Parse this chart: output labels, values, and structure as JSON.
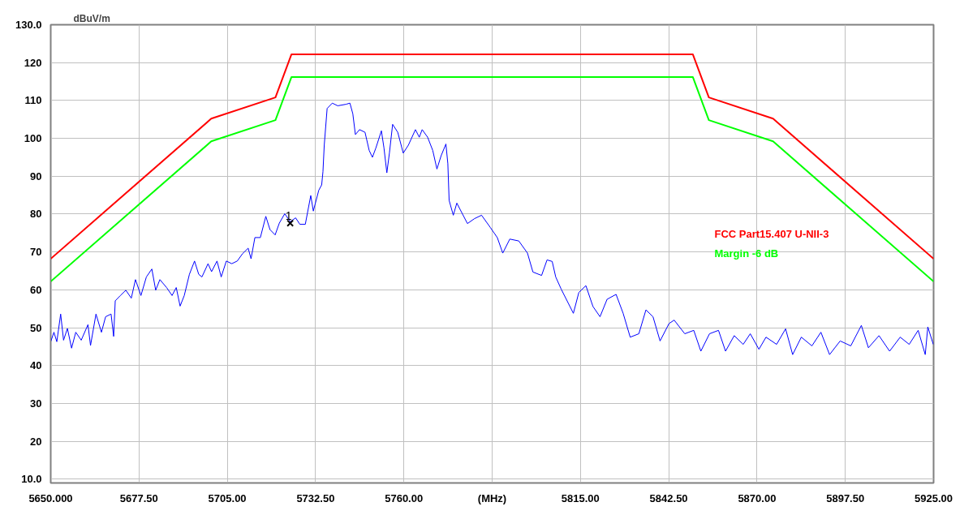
{
  "chart_data": {
    "type": "line",
    "ylabel": "dBuV/m",
    "xlim": [
      5650,
      5925
    ],
    "ylim": [
      9,
      130
    ],
    "xticks": [
      {
        "value": 5650,
        "label": "5650.000"
      },
      {
        "value": 5677.5,
        "label": "5677.50"
      },
      {
        "value": 5705,
        "label": "5705.00"
      },
      {
        "value": 5732.5,
        "label": "5732.50"
      },
      {
        "value": 5760,
        "label": "5760.00"
      },
      {
        "value": 5787.5,
        "label": "(MHz)"
      },
      {
        "value": 5815,
        "label": "5815.00"
      },
      {
        "value": 5842.5,
        "label": "5842.50"
      },
      {
        "value": 5870,
        "label": "5870.00"
      },
      {
        "value": 5897.5,
        "label": "5897.50"
      },
      {
        "value": 5925,
        "label": "5925.00"
      }
    ],
    "yticks": [
      {
        "value": 10,
        "label": "10.0"
      },
      20,
      30,
      40,
      50,
      60,
      70,
      80,
      90,
      100,
      110,
      120,
      {
        "value": 130,
        "label": "130.0"
      }
    ],
    "grid": true,
    "legend": "right",
    "series": [
      {
        "color": "#ff0000",
        "name": "FCC Part15.407 U-NII-3",
        "x": [
          5650,
          5700,
          5720,
          5725,
          5850,
          5855,
          5875,
          5925
        ],
        "values": [
          68.2,
          105.2,
          110.8,
          122.2,
          122.2,
          110.8,
          105.2,
          68.2
        ]
      },
      {
        "color": "#00ff00",
        "name": "Margin -6 dB",
        "x": [
          5650,
          5700,
          5720,
          5725,
          5850,
          5855,
          5875,
          5925
        ],
        "values": [
          62.2,
          99.2,
          104.8,
          116.2,
          116.2,
          104.8,
          99.2,
          62.2
        ]
      },
      {
        "color": "#0000ff",
        "x": [
          5650,
          5651,
          5651.9,
          5653.1,
          5654,
          5655.2,
          5656.5,
          5657.8,
          5659.5,
          5661.6,
          5662.4,
          5664.1,
          5665.8,
          5667.1,
          5668.8,
          5669.6,
          5670.1,
          5671.7,
          5673.4,
          5675.1,
          5676.4,
          5678.1,
          5679.8,
          5681.5,
          5682.7,
          5684,
          5686.1,
          5687.8,
          5689.1,
          5690.3,
          5691.6,
          5693.2,
          5694.8,
          5696.1,
          5697.1,
          5699,
          5700.1,
          5701.8,
          5703.1,
          5704.7,
          5706.4,
          5708.1,
          5709.8,
          5711.5,
          5712.4,
          5713.6,
          5715.3,
          5717,
          5718.3,
          5719.9,
          5721.2,
          5722.9,
          5724.6,
          5726.3,
          5727.6,
          5729.3,
          5731,
          5731.8,
          5733.5,
          5734.4,
          5734.8,
          5735.2,
          5736.1,
          5737.7,
          5739.4,
          5742,
          5743.2,
          5744.1,
          5744.9,
          5746.2,
          5747.9,
          5749.2,
          5750.2,
          5751.3,
          5753,
          5753.8,
          5754.7,
          5755.5,
          5756.5,
          5758.1,
          5759.8,
          5761.4,
          5763.6,
          5764.8,
          5765.7,
          5767.4,
          5769,
          5770.3,
          5771.6,
          5773.1,
          5773.7,
          5774.1,
          5775.4,
          5776.5,
          5779.8,
          5782,
          5784.2,
          5786.9,
          5789.1,
          5790.8,
          5793,
          5795.8,
          5798.5,
          5800.2,
          5802.9,
          5804.6,
          5806.2,
          5807.3,
          5809,
          5812.8,
          5814.5,
          5816.7,
          5818.9,
          5821.1,
          5823.3,
          5826.1,
          5828.3,
          5830.5,
          5833.2,
          5835.4,
          5837.6,
          5839.8,
          5842.6,
          5844.2,
          5847.5,
          5850.3,
          5852.5,
          5855.2,
          5858,
          5860.2,
          5862.9,
          5865.7,
          5867.9,
          5870.6,
          5872.8,
          5876.1,
          5878.9,
          5881.1,
          5883.8,
          5887.1,
          5889.9,
          5892.6,
          5895.9,
          5899.2,
          5902.5,
          5904.7,
          5908,
          5911.3,
          5914.6,
          5917.4,
          5920.2,
          5922.4,
          5923.2,
          5924.9
        ],
        "values": [
          46.3,
          48.8,
          46.3,
          53.6,
          46.7,
          49.8,
          44.6,
          48.8,
          46.7,
          50.8,
          45.3,
          53.6,
          48.8,
          52.9,
          53.6,
          47.7,
          57.1,
          58.5,
          59.9,
          57.8,
          62.7,
          58.5,
          63.4,
          65.5,
          59.9,
          62.7,
          60.6,
          58.5,
          60.6,
          55.7,
          58.5,
          64.1,
          67.6,
          64.1,
          63.4,
          66.9,
          64.8,
          67.6,
          63.4,
          67.6,
          66.9,
          67.6,
          69.6,
          71,
          68.2,
          73.8,
          73.8,
          79.4,
          75.9,
          74.5,
          77.6,
          80.1,
          78,
          79,
          77.3,
          77.3,
          84.9,
          80.8,
          86.3,
          87.7,
          91.2,
          98.2,
          107.9,
          109.3,
          108.6,
          109,
          109.3,
          106.5,
          101,
          102.3,
          101.6,
          96.8,
          95,
          97.5,
          102,
          97.5,
          90.9,
          96.1,
          103.7,
          101.6,
          96.1,
          98.2,
          102.3,
          100.3,
          102.3,
          100.3,
          96.8,
          91.9,
          95.4,
          98.5,
          93.3,
          83.6,
          79.7,
          82.9,
          77.5,
          78.8,
          79.7,
          76.5,
          73.8,
          69.7,
          73.4,
          72.9,
          69.7,
          64.7,
          63.8,
          67.9,
          67.5,
          63.4,
          60.2,
          53.8,
          59.3,
          61.1,
          55.6,
          52.9,
          57.5,
          58.8,
          53.8,
          47.5,
          48.4,
          54.7,
          52.9,
          46.5,
          51.1,
          52,
          48.4,
          49.3,
          43.8,
          48.4,
          49.3,
          43.8,
          47.9,
          45.6,
          48.4,
          44.3,
          47.5,
          45.6,
          49.7,
          42.9,
          47.5,
          45.2,
          48.8,
          42.9,
          46.5,
          45.2,
          50.6,
          44.7,
          47.9,
          43.8,
          47.5,
          45.6,
          49.3,
          42.9,
          50.2,
          45.6
        ]
      },
      {
        "type": "scatter",
        "color": "#000000",
        "marker": "cross",
        "x": [
          5724.6
        ],
        "values": [
          77.6
        ]
      }
    ],
    "annotations": [
      {
        "text": "1",
        "x": 5724.6,
        "y": 77.6
      }
    ]
  }
}
